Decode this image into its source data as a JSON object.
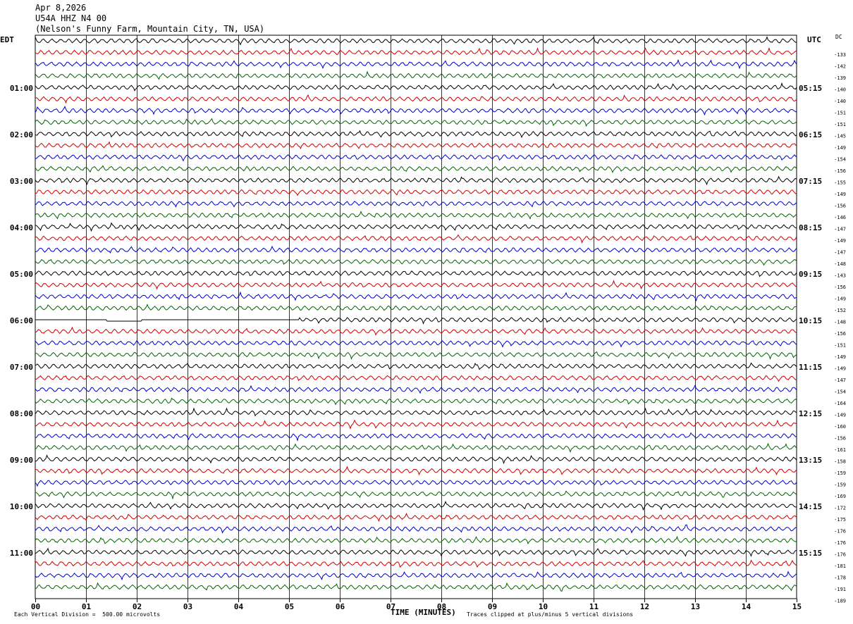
{
  "header": {
    "date": "Apr 8,2026",
    "station": "U54A HHZ N4 00",
    "location": "(Nelson's Funny Farm, Mountain City, TN, USA)"
  },
  "left_timezone": "EDT",
  "right_timezone": "UTC",
  "dc_label": "DC",
  "footer": {
    "scale_text": "Each Vertical Division =  500.00 microvolts",
    "clip_text": "Traces clipped at plus/minus 5 vertical divisions"
  },
  "colors": {
    "trace": [
      "#000000",
      "#cc0000",
      "#0000cc",
      "#006600"
    ],
    "grid": "#000000"
  },
  "chart_data": {
    "type": "line",
    "title": "",
    "xlabel": "TIME (MINUTES)",
    "x_ticks": [
      "00",
      "01",
      "02",
      "03",
      "04",
      "05",
      "06",
      "07",
      "08",
      "09",
      "10",
      "11",
      "12",
      "13",
      "14",
      "15"
    ],
    "xlim": [
      0,
      15
    ],
    "rows_per_hour": 4,
    "row_count": 48,
    "left_hour_labels": [
      "01:00",
      "02:00",
      "03:00",
      "04:00",
      "05:00",
      "06:00",
      "07:00",
      "08:00",
      "09:00",
      "10:00",
      "11:00"
    ],
    "right_hour_labels": [
      "05:15",
      "06:15",
      "07:15",
      "08:15",
      "09:15",
      "10:15",
      "11:15",
      "12:15",
      "13:15",
      "14:15",
      "15:15"
    ],
    "dc_offsets": [
      -133,
      -142,
      -139,
      -140,
      -140,
      -151,
      -151,
      -145,
      -149,
      -154,
      -156,
      -155,
      -149,
      -156,
      -146,
      -147,
      -149,
      -147,
      -148,
      -143,
      -156,
      -149,
      -152,
      -148,
      -156,
      -151,
      -149,
      -149,
      -147,
      -154,
      -164,
      -149,
      -160,
      -156,
      -161,
      -158,
      -159,
      -159,
      -169,
      -172,
      -175,
      -176,
      -176,
      -176,
      -181,
      -178,
      -191,
      -189
    ],
    "gap_row": 24,
    "gap_minutes": [
      0,
      5.2
    ]
  }
}
